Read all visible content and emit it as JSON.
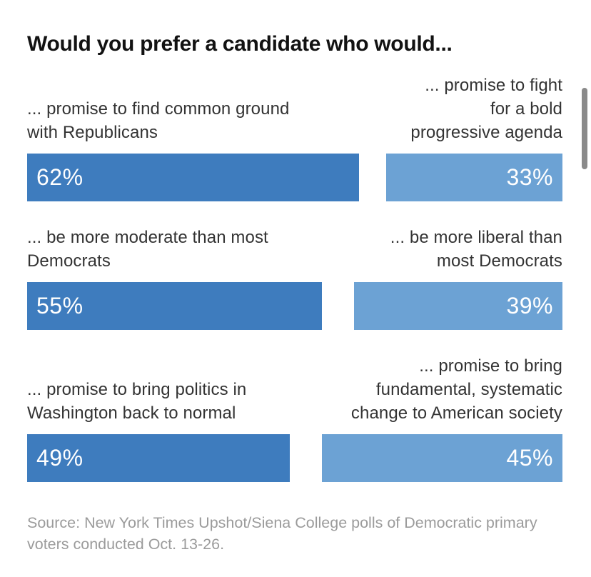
{
  "chart": {
    "title": "Would you prefer a candidate who would...",
    "colors": {
      "left_bar": "#3e7cbe",
      "right_bar": "#6ca2d4",
      "label_text": "#333333",
      "source_text": "#9b9b9b",
      "scrollbar": "#8a8a8a"
    },
    "pairs": [
      {
        "left": {
          "label_lines": [
            "... promise to find common ground",
            "with Republicans"
          ],
          "value": 62,
          "value_label": "62%"
        },
        "right": {
          "label_lines": [
            "... promise to fight",
            "for a bold",
            "progressive agenda"
          ],
          "value": 33,
          "value_label": "33%"
        }
      },
      {
        "left": {
          "label_lines": [
            "... be more moderate than most",
            "Democrats"
          ],
          "value": 55,
          "value_label": "55%"
        },
        "right": {
          "label_lines": [
            "... be more liberal than",
            "most Democrats"
          ],
          "value": 39,
          "value_label": "39%"
        }
      },
      {
        "left": {
          "label_lines": [
            "... promise to bring politics in",
            "Washington back to normal"
          ],
          "value": 49,
          "value_label": "49%"
        },
        "right": {
          "label_lines": [
            "... promise to bring",
            "fundamental, systematic",
            "change to American society"
          ],
          "value": 45,
          "value_label": "45%"
        }
      }
    ],
    "source_lines": [
      "Source: New York Times Upshot/Siena College polls of Democratic primary",
      "voters conducted Oct. 13-26."
    ]
  },
  "chart_data": {
    "type": "bar",
    "orientation": "horizontal",
    "title": "Would you prefer a candidate who would...",
    "unit": "%",
    "value_range": [
      0,
      100
    ],
    "grid": false,
    "legend": false,
    "pairs": [
      {
        "left_option": "... promise to find common ground with Republicans",
        "left_value": 62,
        "right_option": "... promise to fight for a bold progressive agenda",
        "right_value": 33
      },
      {
        "left_option": "... be more moderate than most Democrats",
        "left_value": 55,
        "right_option": "... be more liberal than most Democrats",
        "right_value": 39
      },
      {
        "left_option": "... promise to bring politics in Washington back to normal",
        "left_value": 49,
        "right_option": "... promise to bring fundamental, systematic change to American society",
        "right_value": 45
      }
    ],
    "source": "Source: New York Times Upshot/Siena College polls of Democratic primary voters conducted Oct. 13-26."
  }
}
